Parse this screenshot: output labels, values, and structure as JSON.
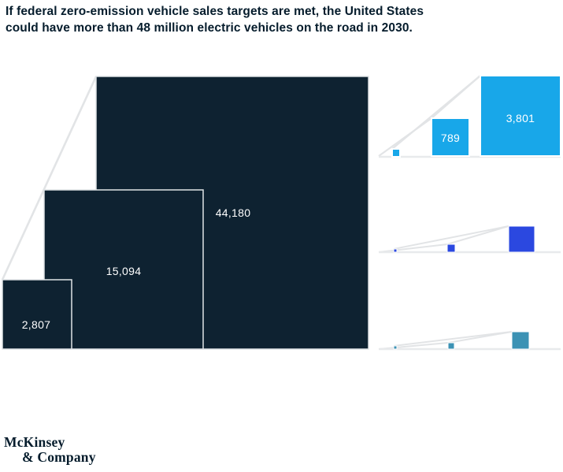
{
  "title": {
    "line1": "If federal zero-emission vehicle sales targets are met, the United States",
    "line2": "could have more than 48 million electric vehicles on the road in 2030."
  },
  "logo": {
    "line1": "McKinsey",
    "line2": "& Company"
  },
  "colors": {
    "background": "#ffffff",
    "title_text": "#051c2c",
    "logo_text": "#051c2c",
    "navy_square": "#0e2231",
    "light_blue_square": "#18a7e9",
    "royal_blue_square": "#2b48e0",
    "steel_blue_square": "#3c92b4",
    "square_border_on_navy": "#dfe3e6",
    "square_border_on_blue": "#ffffff",
    "connector_line": "#e2e4e6",
    "baseline": "#e8eaec",
    "value_label_text": "#ffffff"
  },
  "chart_data": [
    {
      "name": "evs-nested-squares",
      "type": "area-square",
      "color": "#0e2231",
      "legend": "none",
      "squares": [
        {
          "label": "44,180",
          "value": 44180
        },
        {
          "label": "15,094",
          "value": 15094
        },
        {
          "label": "2,807",
          "value": 2807
        }
      ]
    },
    {
      "name": "right-top-squares",
      "type": "area-square",
      "color": "#18a7e9",
      "legend": "none",
      "squares": [
        {
          "label": "3,801",
          "value": 3801
        },
        {
          "label": "789",
          "value": 789
        },
        {
          "label": "",
          "value": null
        }
      ]
    },
    {
      "name": "right-middle-squares",
      "type": "area-square",
      "color": "#2b48e0",
      "legend": "none",
      "squares": [
        {
          "label": "",
          "value": null
        },
        {
          "label": "",
          "value": null
        },
        {
          "label": "",
          "value": null
        }
      ]
    },
    {
      "name": "right-bottom-squares",
      "type": "area-square",
      "color": "#3c92b4",
      "legend": "none",
      "squares": [
        {
          "label": "",
          "value": null
        },
        {
          "label": "",
          "value": null
        },
        {
          "label": "",
          "value": null
        }
      ]
    }
  ]
}
